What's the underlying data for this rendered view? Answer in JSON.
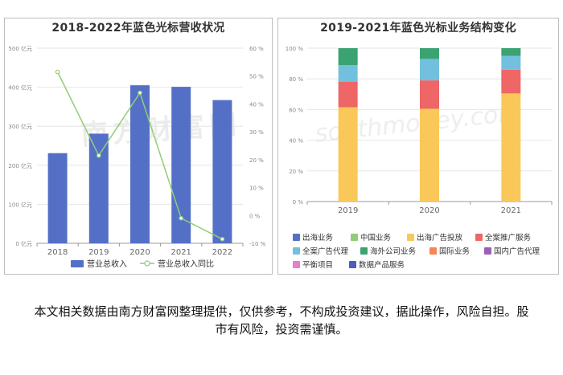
{
  "left_chart": {
    "title": "2018-2022年蓝色光标营收状况",
    "legend": {
      "bar": "营业总收入",
      "line": "营业总收入同比"
    }
  },
  "right_chart": {
    "title": "2019-2021年蓝色光标业务结构变化"
  },
  "watermark": "南方财富网",
  "disclaimer": "本文相关数据由南方财富网整理提供，仅供参考，不构成投资建议，据此操作，风险自担。股市有风险，投资需谨慎。",
  "colors": {
    "bar": "#5470c6",
    "line": "#91cc75",
    "grid": "#e6e6e6",
    "axis_text": "#888888"
  },
  "chart_data": [
    {
      "type": "bar",
      "title": "2018-2022年蓝色光标营收状况",
      "categories": [
        "2018",
        "2019",
        "2020",
        "2021",
        "2022"
      ],
      "series": [
        {
          "name": "营业总收入",
          "type": "bar",
          "axis": "left",
          "values": [
            231,
            281,
            405,
            401,
            367
          ],
          "color": "#5470c6"
        },
        {
          "name": "营业总收入同比",
          "type": "line",
          "axis": "right",
          "values": [
            51.5,
            21.5,
            44.0,
            -1.0,
            -8.5
          ],
          "color": "#91cc75"
        }
      ],
      "y_left": {
        "ticks": [
          "0 亿元",
          "100 亿元",
          "200 亿元",
          "300 亿元",
          "400 亿元",
          "500 亿元"
        ],
        "ylim": [
          0,
          500
        ]
      },
      "y_right": {
        "ticks": [
          "-10 %",
          "0 %",
          "10 %",
          "20 %",
          "30 %",
          "40 %",
          "50 %",
          "60 %"
        ],
        "ylim": [
          -10,
          60
        ]
      },
      "grid": true,
      "legend_position": "bottom"
    },
    {
      "type": "bar",
      "stacked": true,
      "title": "2019-2021年蓝色光标业务结构变化",
      "categories": [
        "2019",
        "2020",
        "2021"
      ],
      "y": {
        "ticks": [
          "0 %",
          "20 %",
          "40 %",
          "60 %",
          "80 %",
          "100 %"
        ],
        "ylim": [
          0,
          100
        ]
      },
      "series": [
        {
          "name": "出海业务",
          "values": [
            0,
            0,
            0
          ],
          "color": "#5470c6"
        },
        {
          "name": "中国业务",
          "values": [
            0,
            0,
            0
          ],
          "color": "#91cc75"
        },
        {
          "name": "出海广告投放",
          "values": [
            61.5,
            60.5,
            70.5
          ],
          "color": "#fac858"
        },
        {
          "name": "全案推广服务",
          "values": [
            16.5,
            18.5,
            15.5
          ],
          "color": "#ee6666"
        },
        {
          "name": "全案广告代理",
          "values": [
            11.0,
            14.0,
            9.0
          ],
          "color": "#73c0de"
        },
        {
          "name": "海外公司业务",
          "values": [
            11.0,
            7.0,
            5.0
          ],
          "color": "#3ba272"
        },
        {
          "name": "国际业务",
          "values": [
            0,
            0,
            0
          ],
          "color": "#fc8452"
        },
        {
          "name": "国内广告代理",
          "values": [
            0,
            0,
            0
          ],
          "color": "#9a60b4"
        },
        {
          "name": "平衡项目",
          "values": [
            0,
            0,
            0
          ],
          "color": "#ea7ccc"
        },
        {
          "name": "数据产品服务",
          "values": [
            0,
            0,
            0
          ],
          "color": "#4b5cc4"
        }
      ],
      "grid": true,
      "legend_position": "bottom"
    }
  ]
}
